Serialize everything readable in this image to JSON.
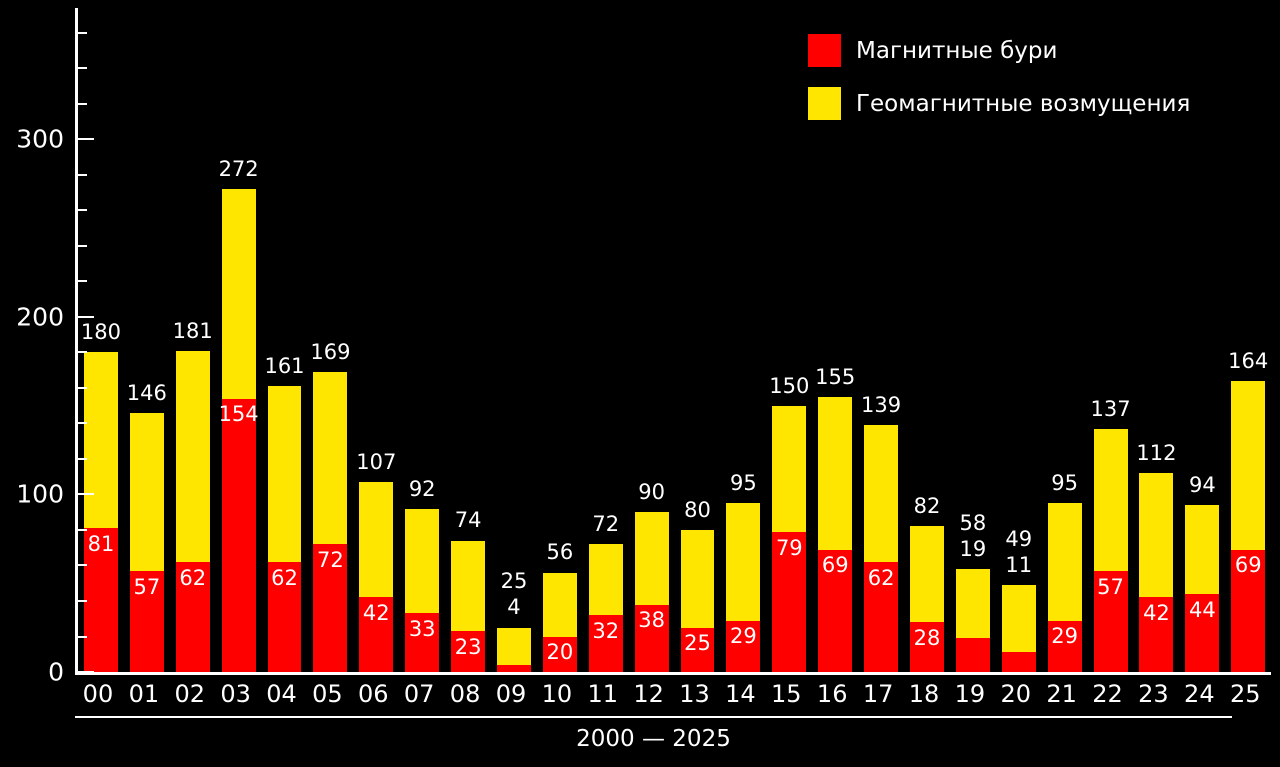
{
  "chart_data": {
    "type": "bar",
    "stacked": true,
    "title": "",
    "xlabel": "2000 — 2025",
    "ylabel": "",
    "categories": [
      "00",
      "01",
      "02",
      "03",
      "04",
      "05",
      "06",
      "07",
      "08",
      "09",
      "10",
      "11",
      "12",
      "13",
      "14",
      "15",
      "16",
      "17",
      "18",
      "19",
      "20",
      "21",
      "22",
      "23",
      "24",
      "25"
    ],
    "series": [
      {
        "name": "Магнитные бури",
        "color": "#ff0000",
        "values": [
          81,
          57,
          62,
          154,
          62,
          72,
          42,
          33,
          23,
          4,
          20,
          32,
          38,
          25,
          29,
          79,
          69,
          62,
          28,
          19,
          11,
          29,
          57,
          42,
          44,
          69
        ]
      },
      {
        "name": "Геомагнитные возмущения",
        "color": "#ffe600",
        "values": [
          99,
          89,
          119,
          118,
          99,
          97,
          65,
          59,
          51,
          21,
          36,
          40,
          52,
          55,
          66,
          71,
          86,
          77,
          54,
          39,
          38,
          66,
          80,
          70,
          50,
          95
        ]
      }
    ],
    "totals": [
      180,
      146,
      181,
      272,
      161,
      169,
      107,
      92,
      74,
      25,
      56,
      72,
      90,
      80,
      95,
      150,
      155,
      139,
      82,
      58,
      49,
      95,
      137,
      112,
      94,
      164
    ],
    "ylim": [
      0,
      374
    ],
    "yticks": [
      0,
      100,
      200,
      300
    ],
    "minor_tick_step": 20,
    "grid": false,
    "legend_position": "top-right",
    "red_label_outside_indices": [
      9,
      19,
      20
    ],
    "background": "#000000",
    "axis_color": "#ffffff"
  }
}
